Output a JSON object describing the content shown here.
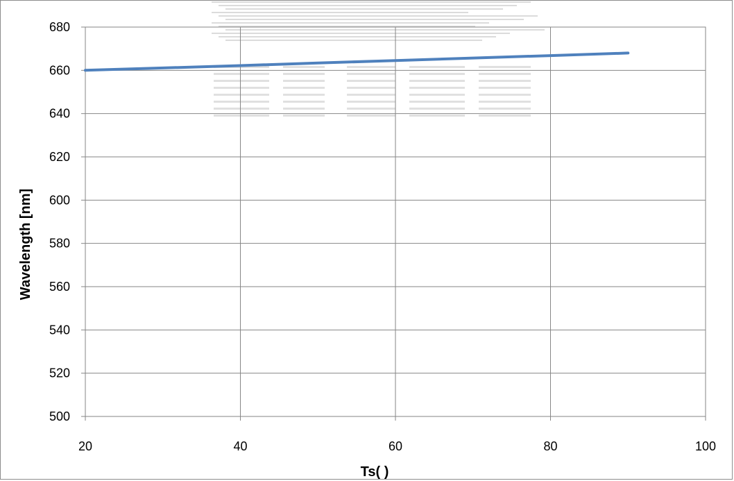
{
  "chart_data": {
    "type": "line",
    "title": "",
    "xlabel": "Ts(   )",
    "ylabel": "Wavelength  [nm]",
    "xlim": [
      20,
      100
    ],
    "ylim": [
      500,
      680
    ],
    "x_ticks": [
      20,
      40,
      60,
      80,
      100
    ],
    "y_ticks": [
      500,
      520,
      540,
      560,
      580,
      600,
      620,
      640,
      660,
      680
    ],
    "grid": true,
    "legend": "none",
    "series": [
      {
        "color": "#4f81bd",
        "x": [
          20,
          30,
          40,
          50,
          60,
          70,
          80,
          90
        ],
        "y": [
          660.0,
          661.1,
          662.2,
          663.4,
          664.5,
          665.7,
          666.8,
          668.0
        ]
      }
    ]
  },
  "watermark": {
    "text": "EPT INK"
  }
}
